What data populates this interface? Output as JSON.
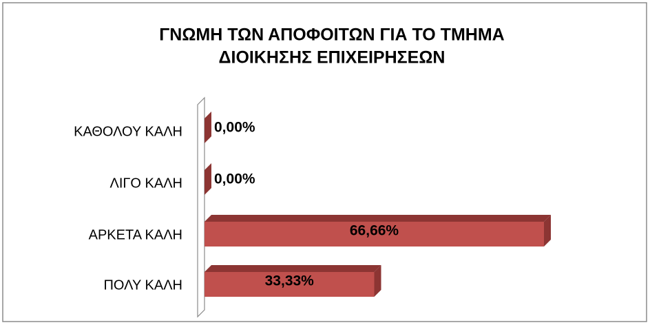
{
  "chart_data": {
    "type": "bar",
    "orientation": "horizontal",
    "title": [
      "ΓΝΩΜΗ ΤΩΝ ΑΠΟΦΟΙΤΩΝ ΓΙΑ ΤΟ ΤΜΗΜΑ",
      "ΔΙΟΙΚΗΣΗΣ ΕΠΙΧΕΙΡΗΣΕΩΝ"
    ],
    "categories": [
      "ΚΑΘΟΛΟΥ ΚΑΛΗ",
      "ΛΙΓΟ ΚΑΛΗ",
      "ΑΡΚΕΤΑ ΚΑΛΗ",
      "ΠΟΛΥ ΚΑΛΗ"
    ],
    "values": [
      0,
      0,
      66.66,
      33.33
    ],
    "value_labels": [
      "0,00%",
      "0,00%",
      "66,66%",
      "33,33%"
    ],
    "color": "#c0504d",
    "side_color": "#8c3533"
  }
}
